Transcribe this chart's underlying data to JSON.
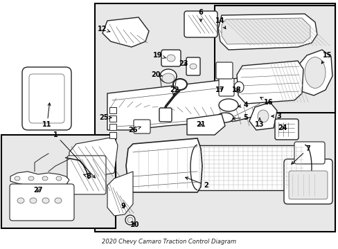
{
  "title": "2020 Chevy Camaro Traction Control Diagram",
  "bg_color": "#e8e8e8",
  "white": "#ffffff",
  "black": "#000000",
  "dark": "#222222",
  "mid": "#555555",
  "light_fill": "#f0f0f0",
  "part_fill": "#e0e0e0",
  "fig_w": 4.89,
  "fig_h": 3.6,
  "dpi": 100,
  "label_fs": 7,
  "title_fs": 6,
  "lw_thin": 0.5,
  "lw_med": 0.8,
  "lw_thick": 1.2,
  "lw_border": 1.5
}
